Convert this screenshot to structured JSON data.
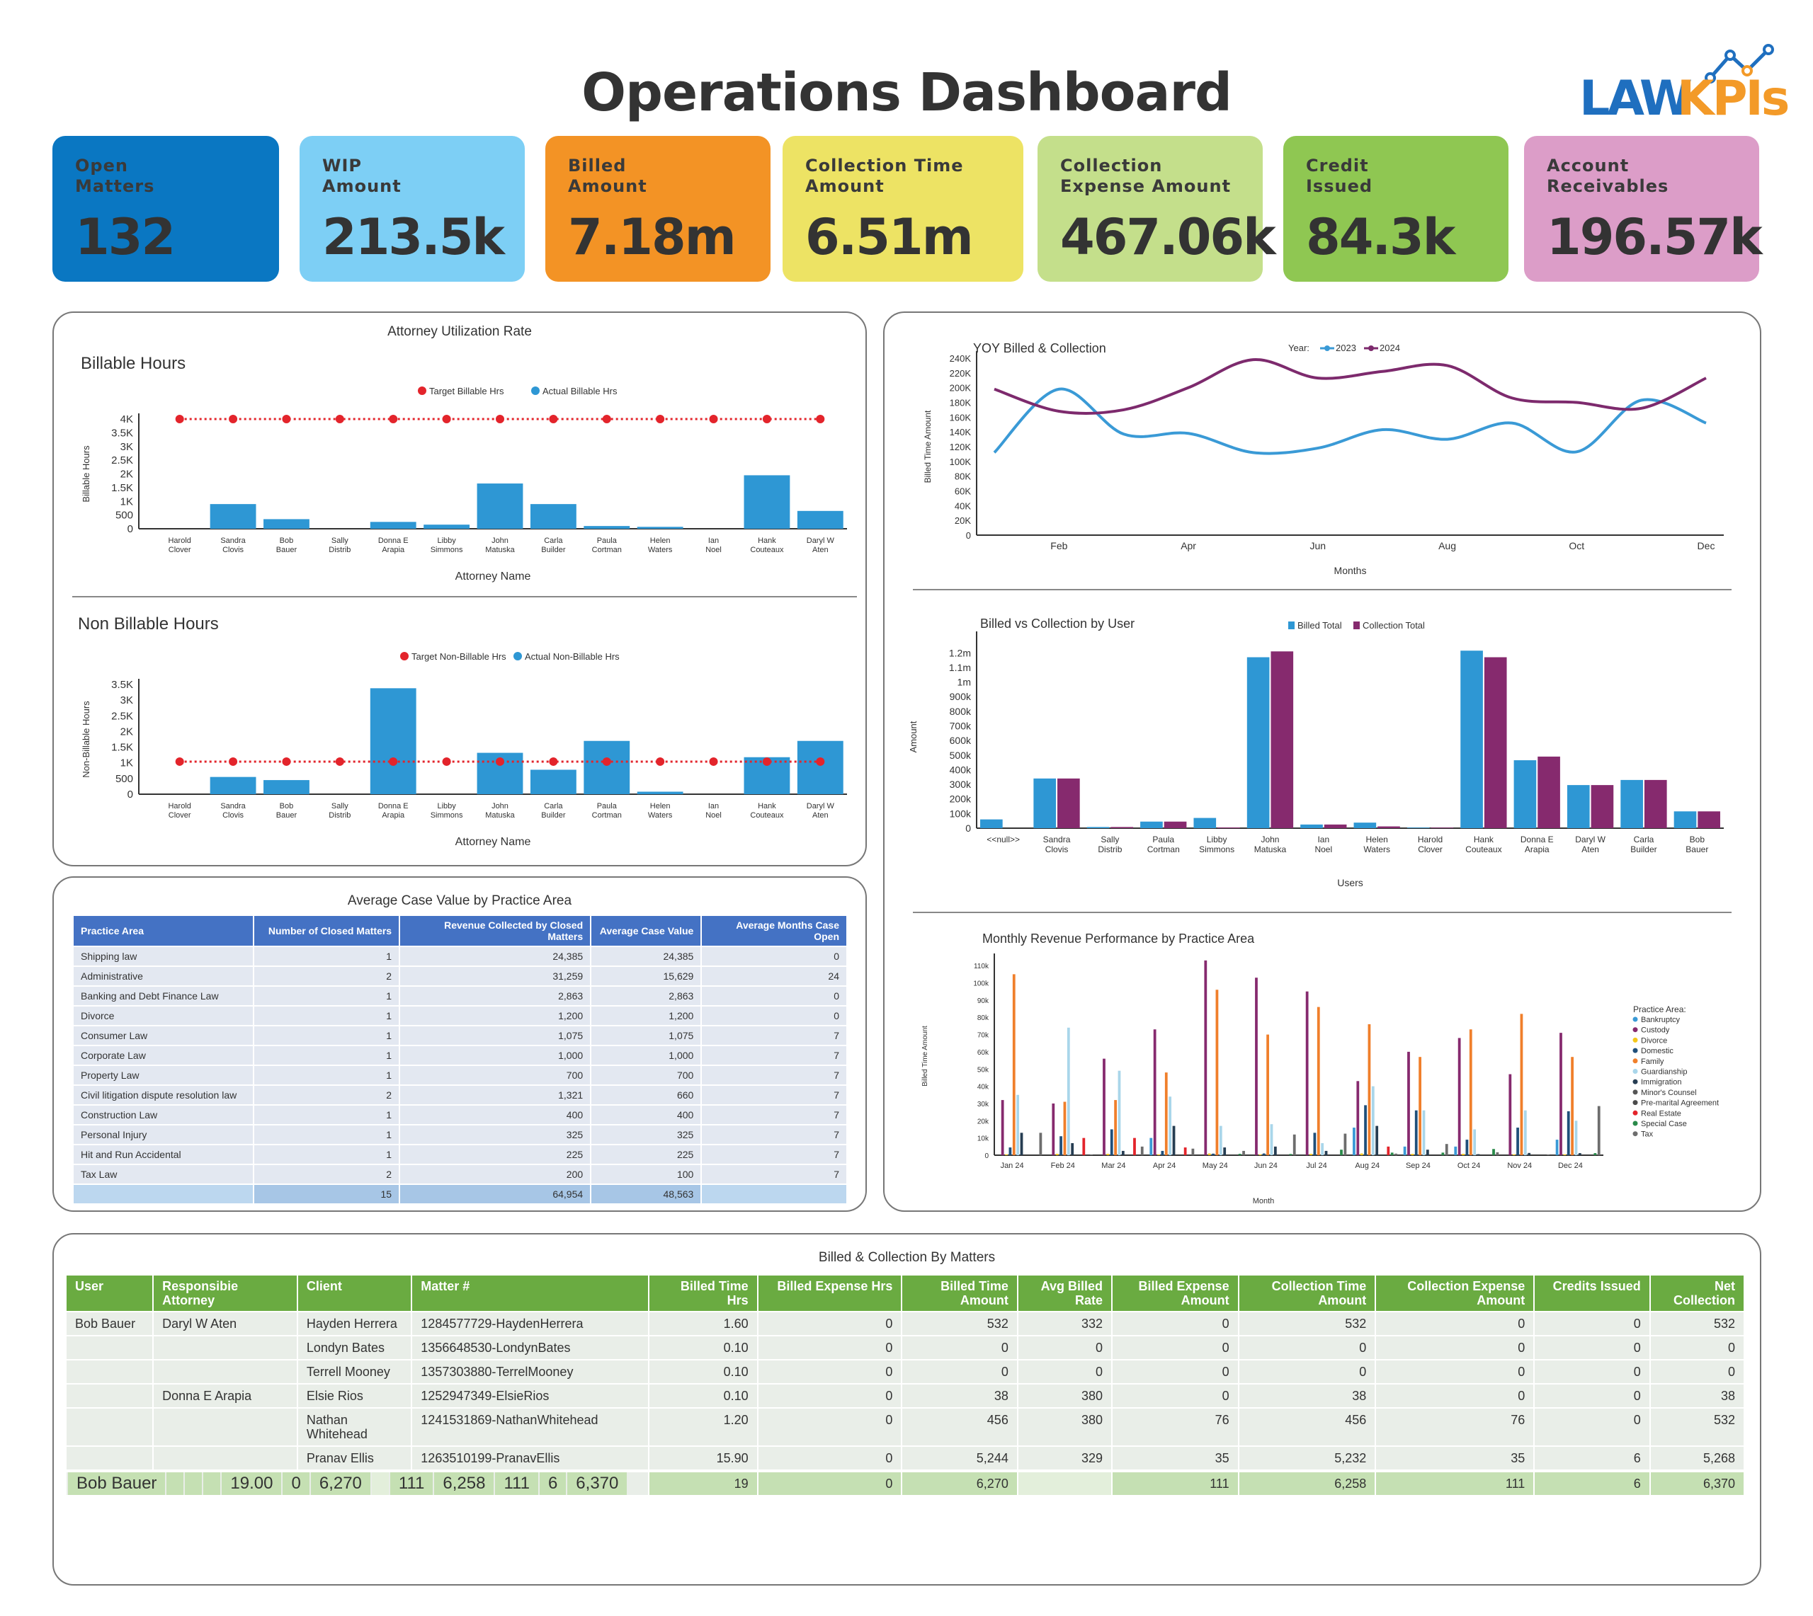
{
  "header": {
    "title": "Operations Dashboard",
    "logo": {
      "part1": "LAW",
      "part2": "KPIs"
    }
  },
  "kpis": [
    {
      "label": "Open\nMatters",
      "value": "132",
      "color": "#0a77c2"
    },
    {
      "label": "WIP\nAmount",
      "value": "213.5k",
      "color": "#7dcff5"
    },
    {
      "label": "Billed\nAmount",
      "value": "7.18m",
      "color": "#f39325"
    },
    {
      "label": "Collection Time\nAmount",
      "value": "6.51m",
      "color": "#ede364"
    },
    {
      "label": "Collection\nExpense Amount",
      "value": "467.06k",
      "color": "#c4df8b"
    },
    {
      "label": "Credit\nIssued",
      "value": "84.3k",
      "color": "#8fc752"
    },
    {
      "label": "Account\nReceivables",
      "value": "196.57k",
      "color": "#dc9dc8"
    }
  ],
  "utilization": {
    "title": "Attorney Utilization Rate"
  },
  "chart_data": [
    {
      "id": "billable",
      "type": "bar",
      "title": "Billable Hours",
      "xlabel": "Attorney Name",
      "ylabel": "Billable Hours",
      "ylim": [
        0,
        4000
      ],
      "yticks": [
        "0",
        "500",
        "1K",
        "1.5K",
        "2K",
        "2.5K",
        "3K",
        "3.5K",
        "4K"
      ],
      "categories": [
        "Harold Clover",
        "Sandra Clovis",
        "Bob Bauer",
        "Sally Distrib",
        "Donna E Arapia",
        "Libby Simmons",
        "John Matuska",
        "Carla Builder",
        "Paula Cortman",
        "Helen Waters",
        "Ian Noel",
        "Hank Couteaux",
        "Daryl W Aten"
      ],
      "legend": [
        "Target Billable Hrs",
        "Actual Billable Hrs"
      ],
      "series": [
        {
          "name": "Target Billable Hrs",
          "kind": "line",
          "color": "#e3242b",
          "values": [
            4000,
            4000,
            4000,
            4000,
            4000,
            4000,
            4000,
            4000,
            4000,
            4000,
            4000,
            4000,
            4000
          ]
        },
        {
          "name": "Actual Billable Hrs",
          "kind": "bar",
          "color": "#2e97d4",
          "values": [
            0,
            900,
            350,
            0,
            250,
            150,
            1650,
            900,
            100,
            70,
            0,
            1950,
            650
          ]
        }
      ]
    },
    {
      "id": "nonbillable",
      "type": "bar",
      "title": "Non Billable Hours",
      "xlabel": "Attorney Name",
      "ylabel": "Non-Billable Hours",
      "ylim": [
        0,
        3500
      ],
      "yticks": [
        "0",
        "500",
        "1K",
        "1.5K",
        "2K",
        "2.5K",
        "3K",
        "3.5K"
      ],
      "categories": [
        "Harold Clover",
        "Sandra Clovis",
        "Bob Bauer",
        "Sally Distrib",
        "Donna E Arapia",
        "Libby Simmons",
        "John Matuska",
        "Carla Builder",
        "Paula Cortman",
        "Helen Waters",
        "Ian Noel",
        "Hank Couteaux",
        "Daryl W Aten"
      ],
      "legend": [
        "Target Non-Billable Hrs",
        "Actual Non-Billable Hrs"
      ],
      "series": [
        {
          "name": "Target Non-Billable Hrs",
          "kind": "line",
          "color": "#e3242b",
          "values": [
            1040,
            1040,
            1040,
            1040,
            1040,
            1040,
            1040,
            1040,
            1040,
            1040,
            1040,
            1040,
            1040
          ]
        },
        {
          "name": "Actual Non-Billable Hrs",
          "kind": "bar",
          "color": "#2e97d4",
          "values": [
            0,
            550,
            450,
            0,
            3380,
            0,
            1320,
            780,
            1700,
            80,
            0,
            1180,
            1700
          ]
        }
      ]
    },
    {
      "id": "yoy",
      "type": "line",
      "title": "YOY Billed & Collection",
      "xlabel": "Months",
      "ylabel": "Billed Time Amount",
      "legend_title": "Year:",
      "ylim": [
        0,
        240000
      ],
      "yticks": [
        "0",
        "20K",
        "40K",
        "60K",
        "80K",
        "100K",
        "120K",
        "140K",
        "160K",
        "180K",
        "200K",
        "220K",
        "240K"
      ],
      "x": [
        "Jan",
        "Feb",
        "Mar",
        "Apr",
        "May",
        "Jun",
        "Jul",
        "Aug",
        "Sep",
        "Oct",
        "Nov",
        "Dec"
      ],
      "xticks": [
        "Feb",
        "Apr",
        "Jun",
        "Aug",
        "Oct",
        "Dec"
      ],
      "series": [
        {
          "name": "2023",
          "color": "#3a9ad6",
          "values": [
            112000,
            198000,
            137000,
            138000,
            112000,
            118000,
            143000,
            130000,
            152000,
            113000,
            183000,
            152000
          ]
        },
        {
          "name": "2024",
          "color": "#7d2a6d",
          "values": [
            198000,
            168000,
            170000,
            200000,
            238000,
            213000,
            222000,
            230000,
            186000,
            180000,
            172000,
            213000
          ]
        }
      ]
    },
    {
      "id": "bvc",
      "type": "bar",
      "title": "Billed vs Collection by User",
      "xlabel": "Users",
      "ylabel": "Amount",
      "ylim": [
        0,
        1250000
      ],
      "yticks": [
        "0",
        "100k",
        "200k",
        "300k",
        "400k",
        "500k",
        "600k",
        "700k",
        "800k",
        "900k",
        "1m",
        "1.1m",
        "1.2m"
      ],
      "categories": [
        "<<null>>",
        "Sandra Clovis",
        "Sally Distrib",
        "Paula Cortman",
        "Libby Simmons",
        "John Matuska",
        "Ian Noel",
        "Helen Waters",
        "Harold Clover",
        "Hank Couteaux",
        "Donna E Arapia",
        "Daryl W Aten",
        "Carla Builder",
        "Bob Bauer"
      ],
      "series": [
        {
          "name": "Billed Total",
          "color": "#2e97d4",
          "values": [
            60000,
            340000,
            8000,
            45000,
            70000,
            1170000,
            25000,
            38000,
            4000,
            1215000,
            465000,
            295000,
            330000,
            115000
          ]
        },
        {
          "name": "Collection Total",
          "color": "#862a6e",
          "values": [
            0,
            340000,
            8000,
            45000,
            5000,
            1210000,
            25000,
            12000,
            4000,
            1170000,
            490000,
            295000,
            330000,
            115000
          ]
        }
      ]
    },
    {
      "id": "monthly",
      "type": "bar",
      "title": "Monthly Revenue Performance by Practice Area",
      "xlabel": "Month",
      "ylabel": "Billed Time Amount",
      "legend_title": "Practice Area:",
      "ylim": [
        0,
        115000
      ],
      "yticks": [
        "0",
        "10k",
        "20k",
        "30k",
        "40k",
        "50k",
        "60k",
        "70k",
        "80k",
        "90k",
        "100k",
        "110k"
      ],
      "categories": [
        "Jan 24",
        "Feb 24",
        "Mar 24",
        "Apr 24",
        "May 24",
        "Jun 24",
        "Jul 24",
        "Aug 24",
        "Sep 24",
        "Oct 24",
        "Nov 24",
        "Dec 24"
      ],
      "series": [
        {
          "name": "Bankruptcy",
          "color": "#3a9ad6",
          "values": [
            0,
            0,
            0,
            10000,
            0,
            0,
            0,
            16000,
            5000,
            5000,
            0,
            9000
          ]
        },
        {
          "name": "Custody",
          "color": "#862a6e",
          "values": [
            32000,
            30000,
            56000,
            73000,
            113000,
            103000,
            95000,
            43000,
            60000,
            68000,
            47000,
            71000
          ]
        },
        {
          "name": "Divorce",
          "color": "#f5c71a",
          "values": [
            500,
            800,
            800,
            500,
            1000,
            500,
            800,
            1000,
            800,
            800,
            500,
            500
          ]
        },
        {
          "name": "Domestic",
          "color": "#1f4f7a",
          "values": [
            4500,
            11000,
            15000,
            2500,
            900,
            1000,
            13000,
            29000,
            26000,
            9000,
            16000,
            25500
          ]
        },
        {
          "name": "Family",
          "color": "#f07f2b",
          "values": [
            105000,
            31000,
            32000,
            48000,
            96000,
            70000,
            86000,
            76000,
            57000,
            73000,
            82000,
            57000
          ]
        },
        {
          "name": "Guardianship",
          "color": "#a9d6ea",
          "values": [
            35000,
            74000,
            49000,
            34000,
            17000,
            18000,
            7000,
            40000,
            26000,
            15000,
            26000,
            20000
          ]
        },
        {
          "name": "Immigration",
          "color": "#263d52",
          "values": [
            13000,
            7000,
            2500,
            17000,
            4500,
            5000,
            2500,
            17000,
            3200,
            600,
            1300,
            1200
          ]
        },
        {
          "name": "Minor's Counsel",
          "color": "#555555",
          "values": [
            0,
            0,
            0,
            0,
            0,
            0,
            0,
            0,
            0,
            0,
            0,
            0
          ]
        },
        {
          "name": "Pre-marital Agreement",
          "color": "#4a4a4a",
          "values": [
            0,
            0,
            0,
            0,
            0,
            0,
            0,
            0,
            0,
            0,
            0,
            0
          ]
        },
        {
          "name": "Real Estate",
          "color": "#e3242b",
          "values": [
            0,
            10000,
            10000,
            4500,
            0,
            0,
            0,
            5000,
            0,
            0,
            0,
            0
          ]
        },
        {
          "name": "Special Case",
          "color": "#2a8a4a",
          "values": [
            0,
            0,
            0,
            0,
            800,
            700,
            3200,
            1500,
            1500,
            3600,
            0,
            1200
          ]
        },
        {
          "name": "Tax",
          "color": "#6d6d6d",
          "values": [
            13000,
            300,
            5000,
            3800,
            2500,
            12000,
            12500,
            900,
            6500,
            1700,
            300,
            28500
          ]
        }
      ]
    }
  ],
  "avg_case": {
    "title": "Average Case Value by Practice Area",
    "columns": [
      "Practice Area",
      "Number of Closed Matters",
      "Revenue Collected by Closed Matters",
      "Average Case Value",
      "Average Months Case Open"
    ],
    "rows": [
      [
        "Shipping law",
        "1",
        "24,385",
        "24,385",
        "0"
      ],
      [
        "Administrative",
        "2",
        "31,259",
        "15,629",
        "24"
      ],
      [
        "Banking and Debt Finance Law",
        "1",
        "2,863",
        "2,863",
        "0"
      ],
      [
        "Divorce",
        "1",
        "1,200",
        "1,200",
        "0"
      ],
      [
        "Consumer Law",
        "1",
        "1,075",
        "1,075",
        "7"
      ],
      [
        "Corporate Law",
        "1",
        "1,000",
        "1,000",
        "7"
      ],
      [
        "Property Law",
        "1",
        "700",
        "700",
        "7"
      ],
      [
        "Civil litigation dispute resolution law",
        "2",
        "1,321",
        "660",
        "7"
      ],
      [
        "Construction Law",
        "1",
        "400",
        "400",
        "7"
      ],
      [
        "Personal Injury",
        "1",
        "325",
        "325",
        "7"
      ],
      [
        "Hit and Run Accidental",
        "1",
        "225",
        "225",
        "7"
      ],
      [
        "Tax Law",
        "2",
        "200",
        "100",
        "7"
      ]
    ],
    "total": [
      "",
      "15",
      "64,954",
      "48,563",
      ""
    ]
  },
  "matters": {
    "title": "Billed  & Collection By Matters",
    "columns": [
      "User",
      "Responsibie Attorney",
      "Client",
      "Matter #",
      "Billed Time Hrs",
      "Billed Expense Hrs",
      "Billed Time Amount",
      "Avg Billed Rate",
      "Billed Expense Amount",
      "Collection Time Amount",
      "Collection Expense Amount",
      "Credits Issued",
      "Net Collection"
    ],
    "rows": [
      [
        "Bob Bauer",
        "Daryl W Aten",
        "Hayden Herrera",
        "1284577729-HaydenHerrera",
        "1.60",
        "0",
        "532",
        "332",
        "0",
        "532",
        "0",
        "0",
        "532"
      ],
      [
        "",
        "",
        "Londyn Bates",
        "1356648530-LondynBates",
        "0.10",
        "0",
        "0",
        "0",
        "0",
        "0",
        "0",
        "0",
        "0"
      ],
      [
        "",
        "",
        "Terrell Mooney",
        "1357303880-TerrelMooney",
        "0.10",
        "0",
        "0",
        "0",
        "0",
        "0",
        "0",
        "0",
        "0"
      ],
      [
        "",
        "Donna E Arapia",
        "Elsie Rios",
        "1252947349-ElsieRios",
        "0.10",
        "0",
        "38",
        "380",
        "0",
        "38",
        "0",
        "0",
        "38"
      ],
      [
        "",
        "",
        "Nathan Whitehead",
        "1241531869-NathanWhitehead",
        "1.20",
        "0",
        "456",
        "380",
        "76",
        "456",
        "76",
        "0",
        "532"
      ],
      [
        "",
        "",
        "Pranav Ellis",
        "1263510199-PranavEllis",
        "15.90",
        "0",
        "5,244",
        "329",
        "35",
        "5,232",
        "35",
        "6",
        "5,268"
      ]
    ],
    "subtotal": [
      "Bob Bauer",
      "",
      "",
      "",
      "19.00",
      "0",
      "6,270",
      "",
      "111",
      "6,258",
      "111",
      "6",
      "6,370"
    ],
    "grand_total": [
      "",
      "",
      "",
      "",
      "19",
      "0",
      "6,270",
      "",
      "111",
      "6,258",
      "111",
      "6",
      "6,370"
    ]
  }
}
